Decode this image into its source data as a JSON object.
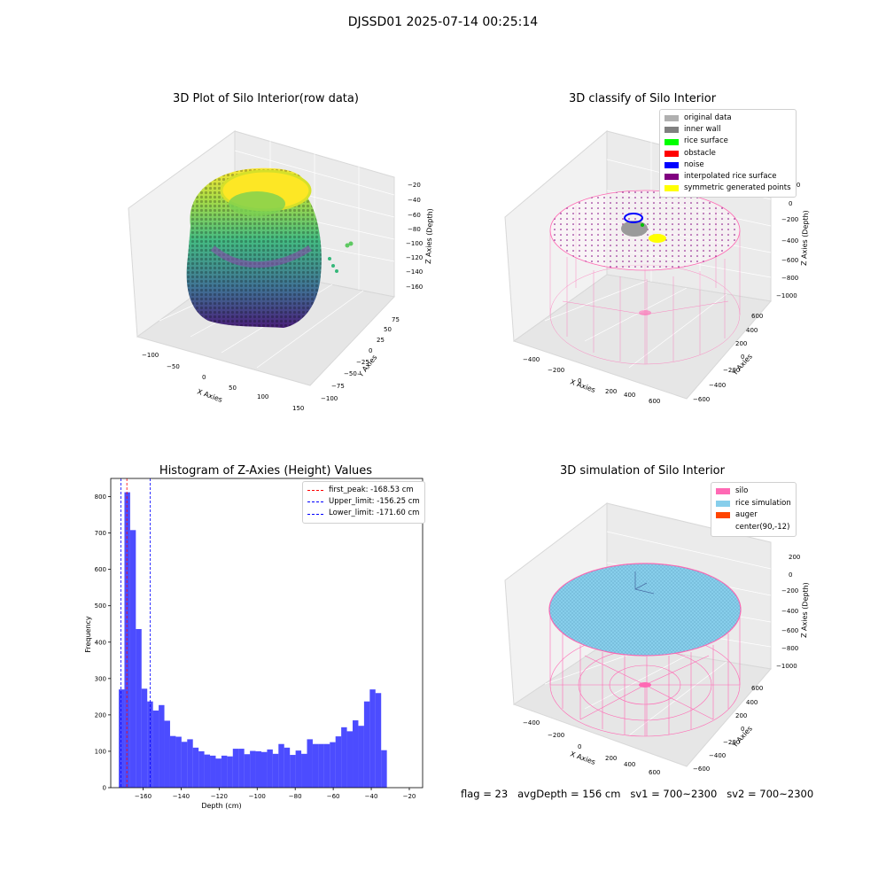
{
  "suptitle": "DJSSD01 2025-07-14 00:25:14",
  "colors": {
    "silo": "#ff69b4",
    "rice_sim": "#87ceeb",
    "auger": "#ff4500",
    "hist_bar": "#0000ff",
    "peak_line": "#ff0000",
    "limit_line": "#0000ff"
  },
  "panels": [
    {
      "title": "3D Plot of Silo Interior(row data)",
      "xlabel": "X Axies",
      "ylabel": "Y Axies",
      "zlabel": "Z Axies (Depth)",
      "xticks": [
        "−100",
        "−50",
        "0",
        "50",
        "100",
        "150"
      ],
      "yticks": [
        "−100",
        "−75",
        "−50",
        "−25",
        "0",
        "25",
        "50",
        "75"
      ],
      "zticks": [
        "−20",
        "−40",
        "−60",
        "−80",
        "−100",
        "−120",
        "−140",
        "−160"
      ]
    },
    {
      "title": "3D classify of Silo Interior",
      "xlabel": "X Axies",
      "ylabel": "Y Axies",
      "zlabel": "Z Axies (Depth)",
      "xticks": [
        "−400",
        "−200",
        "0",
        "200",
        "400",
        "600"
      ],
      "yticks": [
        "−600",
        "−400",
        "−200",
        "0",
        "200",
        "400",
        "600"
      ],
      "zticks": [
        "200",
        "0",
        "−200",
        "−400",
        "−600",
        "−800",
        "−1000"
      ],
      "legend": [
        {
          "label": "original data",
          "color": "#b0b0b0"
        },
        {
          "label": "inner wall",
          "color": "#808080"
        },
        {
          "label": "rice surface",
          "color": "#00ff00"
        },
        {
          "label": "obstacle",
          "color": "#ff0000"
        },
        {
          "label": "noise",
          "color": "#0000ff"
        },
        {
          "label": "interpolated rice surface",
          "color": "#800080"
        },
        {
          "label": "symmetric generated points",
          "color": "#ffff00"
        }
      ]
    },
    {
      "title": "3D simulation of Silo Interior",
      "xlabel": "X Axies",
      "ylabel": "Y Axies",
      "zlabel": "Z Axies (Depth)",
      "xticks": [
        "−400",
        "−200",
        "0",
        "200",
        "400",
        "600"
      ],
      "yticks": [
        "−600",
        "−400",
        "−200",
        "0",
        "200",
        "400",
        "600"
      ],
      "zticks": [
        "200",
        "0",
        "−200",
        "−400",
        "−600",
        "−800",
        "−1000"
      ],
      "legend": [
        {
          "label": "silo",
          "color": "#ff69b4"
        },
        {
          "label": "rice simulation",
          "color": "#87ceeb"
        },
        {
          "label": "auger",
          "color": "#ff4500"
        },
        {
          "label": "center(90,-12)",
          "color": "#ffffff"
        }
      ]
    }
  ],
  "chart_data": {
    "type": "bar",
    "title": "Histogram of Z-Axies (Height) Values",
    "xlabel": "Depth (cm)",
    "ylabel": "Frequency",
    "xlim": [
      -177,
      -13
    ],
    "ylim": [
      0,
      850
    ],
    "xticks": [
      -160,
      -140,
      -120,
      -100,
      -80,
      -60,
      -40,
      -20
    ],
    "yticks": [
      0,
      100,
      200,
      300,
      400,
      500,
      600,
      700,
      800
    ],
    "bins": {
      "start": -172.8,
      "width": 3.0,
      "counts": [
        270,
        812,
        708,
        436,
        272,
        237,
        212,
        227,
        184,
        142,
        140,
        126,
        133,
        110,
        100,
        91,
        88,
        80,
        88,
        86,
        107,
        107,
        92,
        101,
        100,
        98,
        105,
        93,
        120,
        110,
        90,
        102,
        93,
        133,
        120,
        120,
        120,
        125,
        141,
        166,
        155,
        185,
        170,
        237,
        270,
        260,
        103
      ]
    },
    "lines": [
      {
        "label": "first_peak: -168.53 cm",
        "x": -168.53,
        "color": "#ff0000"
      },
      {
        "label": "Upper_limit: -156.25 cm",
        "x": -156.25,
        "color": "#0000ff"
      },
      {
        "label": "Lower_limit: -171.60 cm",
        "x": -171.6,
        "color": "#0000ff"
      }
    ],
    "grid": false,
    "legend_position": "top-right"
  },
  "status": {
    "text": "flag = 23   avgDepth = 156 cm   sv1 = 700~2300   sv2 = 700~2300"
  }
}
